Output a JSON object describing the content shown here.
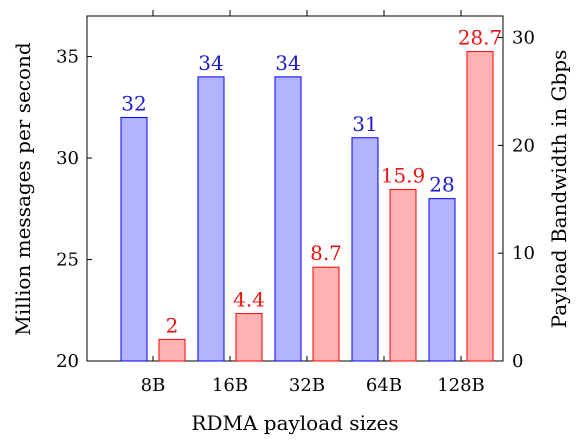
{
  "chart_data": {
    "type": "bar",
    "categories": [
      "8B",
      "16B",
      "32B",
      "64B",
      "128B"
    ],
    "xlabel": "RDMA payload sizes",
    "series": [
      {
        "axis": "left",
        "values": [
          32,
          34,
          34,
          31,
          28
        ],
        "value_labels": [
          "32",
          "34",
          "34",
          "31",
          "28"
        ],
        "fill": "#b3b3ff",
        "stroke": "#0000ff",
        "label_color": "#1a1acc"
      },
      {
        "axis": "right",
        "values": [
          2,
          4.4,
          8.7,
          15.9,
          28.7
        ],
        "value_labels": [
          "2",
          "4.4",
          "8.7",
          "15.9",
          "28.7"
        ],
        "fill": "#ffb3b3",
        "stroke": "#ff0000",
        "label_color": "#ee1111"
      }
    ],
    "y_left": {
      "label": "Million messages per second",
      "lim": [
        20,
        37
      ],
      "ticks": [
        20,
        25,
        30,
        35
      ],
      "tick_labels": [
        "20",
        "25",
        "30",
        "35"
      ]
    },
    "y_right": {
      "label": "Payload Bandwidth in Gbps",
      "lim": [
        0,
        32
      ],
      "ticks": [
        0,
        10,
        20,
        30
      ],
      "tick_labels": [
        "0",
        "10",
        "20",
        "30"
      ]
    },
    "grid": false,
    "legend": "none"
  }
}
